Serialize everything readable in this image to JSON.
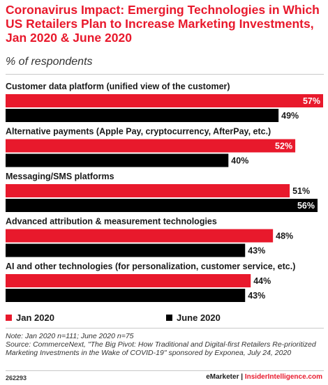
{
  "title": "Coronavirus Impact: Emerging Technologies in Which US Retailers Plan to Increase Marketing Investments, Jan 2020 & June 2020",
  "subtitle": "% of respondents",
  "chart_data": {
    "type": "bar",
    "orientation": "horizontal",
    "categories": [
      "Customer data platform (unified view of the customer)",
      "Alternative payments (Apple Pay, cryptocurrency, AfterPay, etc.)",
      "Messaging/SMS platforms",
      "Advanced attribution & measurement technologies",
      "AI and other technologies (for personalization, customer service, etc.)"
    ],
    "series": [
      {
        "name": "Jan 2020",
        "color": "#e8192c",
        "values": [
          57,
          52,
          51,
          48,
          44
        ]
      },
      {
        "name": "June 2020",
        "color": "#000000",
        "values": [
          49,
          40,
          56,
          43,
          43
        ]
      }
    ],
    "value_suffix": "%",
    "xlim": [
      0,
      57
    ],
    "legend_position": "bottom",
    "grid": false
  },
  "legend": {
    "jan": "Jan 2020",
    "june": "June 2020"
  },
  "notes": {
    "note": "Note: Jan 2020 n=111; June 2020 n=75",
    "source": "Source: CommerceNext, \"The Big Pivot: How Traditional and Digital-first Retailers Re-prioritized Marketing Investments in the Wake of COVID-19\" sponsored by Exponea, July 24, 2020"
  },
  "footer": {
    "id": "262293",
    "brand": "eMarketer",
    "separator": "|",
    "brand2": "InsiderIntelligence.com"
  }
}
